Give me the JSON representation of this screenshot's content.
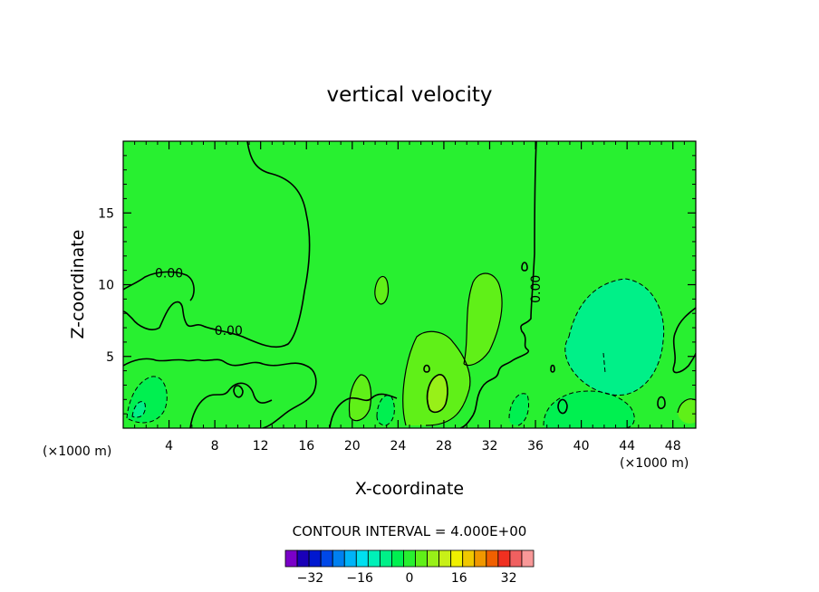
{
  "chart_data": {
    "type": "heatmap",
    "title": "vertical velocity",
    "xlabel": "X-coordinate",
    "ylabel": "Z-coordinate",
    "x_unit_label": "(×1000 m)",
    "y_unit_label": "(×1000 m)",
    "xlim": [
      0,
      50
    ],
    "ylim": [
      0,
      20
    ],
    "x_ticks": [
      4,
      8,
      12,
      16,
      20,
      24,
      28,
      32,
      36,
      40,
      44,
      48
    ],
    "y_ticks": [
      5,
      10,
      15
    ],
    "x_tick_labels": [
      "4",
      "8",
      "12",
      "16",
      "20",
      "24",
      "28",
      "32",
      "36",
      "40",
      "44",
      "48"
    ],
    "y_tick_labels": [
      "5",
      "10",
      "15"
    ],
    "contour_interval_text": "CONTOUR INTERVAL = 4.000E+00",
    "contour_interval": 4,
    "contour_labels": [
      {
        "text": "0.00",
        "x": 4,
        "y": 10.5
      },
      {
        "text": "0.00",
        "x": 9.2,
        "y": 6.5
      },
      {
        "text": "0.00",
        "x": 36.4,
        "y": 9.7
      }
    ],
    "colorbar": {
      "levels": [
        -40,
        -36,
        -32,
        -28,
        -24,
        -20,
        -16,
        -12,
        -8,
        -4,
        0,
        4,
        8,
        12,
        16,
        20,
        24,
        28,
        32,
        36,
        40
      ],
      "colors": [
        "#7a00c8",
        "#1a00b8",
        "#0018d0",
        "#0048e8",
        "#0080f0",
        "#00b4f8",
        "#00e0f0",
        "#00f0b8",
        "#00f088",
        "#00f050",
        "#28f030",
        "#60f018",
        "#98f018",
        "#c8f018",
        "#f0f000",
        "#f0c800",
        "#f09800",
        "#f06000",
        "#f03020",
        "#f06060",
        "#f89898"
      ],
      "tick_values": [
        -32,
        -16,
        0,
        16,
        32
      ],
      "tick_labels": [
        "−32",
        "−16",
        "0",
        "16",
        "32"
      ]
    },
    "field_colors": {
      "background": "#28f030",
      "weak_positive": "#60f018",
      "moderate_positive": "#98f018",
      "weak_negative": "#00f050",
      "moderate_negative": "#00f088"
    }
  }
}
